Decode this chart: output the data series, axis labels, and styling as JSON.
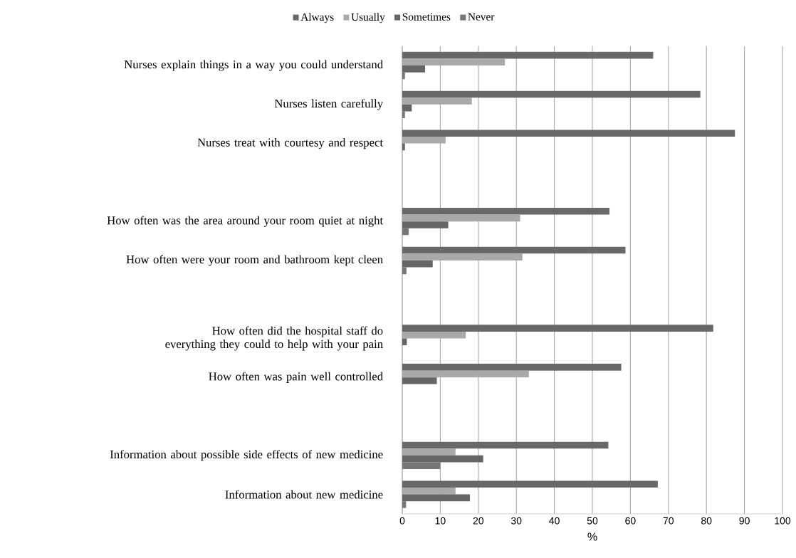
{
  "chart_data": {
    "type": "bar",
    "orientation": "horizontal",
    "xlabel": "%",
    "categories": [
      "Nurses explain things in a way you could understand",
      "Nurses listen carefully",
      "Nurses treat with courtesy and respect",
      null,
      "How often was the area around your room quiet at night",
      "How often were your room and bathroom kept cleen",
      null,
      "How often did the hospital staff do everything they could to help with your pain",
      "How often was pain well controlled",
      null,
      "Information about possible side effects of new medicine",
      "Information about new medicine"
    ],
    "series": [
      {
        "name": "Always",
        "color": "#686868",
        "values": [
          66,
          78.4,
          87.5,
          null,
          54.5,
          58.7,
          null,
          81.8,
          57.6,
          null,
          54.2,
          67.2
        ]
      },
      {
        "name": "Usually",
        "color": "#a9a9a9",
        "values": [
          27,
          18.3,
          11.4,
          null,
          31,
          31.6,
          null,
          16.7,
          33.3,
          null,
          14,
          14
        ]
      },
      {
        "name": "Sometimes",
        "color": "#666666",
        "values": [
          6,
          2.5,
          0.7,
          null,
          12.1,
          8,
          null,
          1.2,
          9.1,
          null,
          21.3,
          17.8
        ]
      },
      {
        "name": "Never",
        "color": "#767676",
        "values": [
          0.7,
          0.7,
          null,
          null,
          1.7,
          1.1,
          null,
          null,
          null,
          null,
          10,
          1
        ]
      }
    ],
    "xlim": [
      0,
      100
    ],
    "xticks": [
      0,
      10,
      20,
      30,
      40,
      50,
      60,
      70,
      80,
      90,
      100
    ],
    "grid": "x",
    "legend": "top"
  }
}
